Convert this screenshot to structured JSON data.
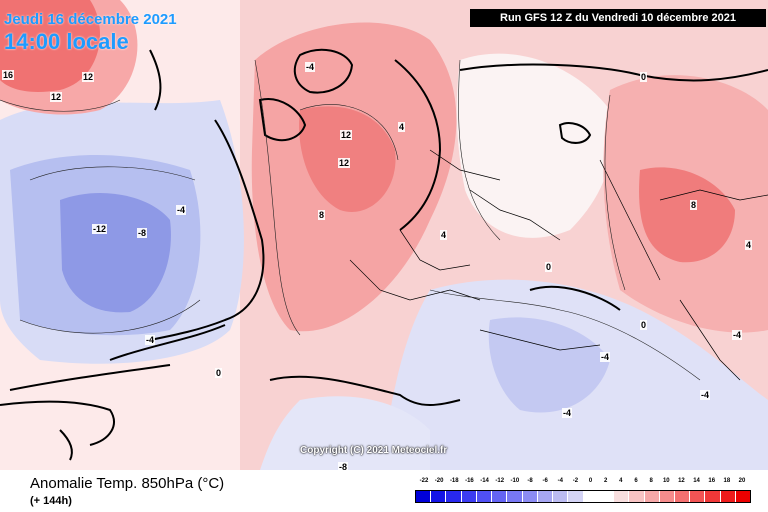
{
  "header": {
    "date": "Jeudi 16 décembre 2021",
    "time": "14:00 locale",
    "run_info": "Run GFS 12 Z du Vendredi 10 décembre 2021"
  },
  "copyright": "Copyright (C) 2021 Meteociel.fr",
  "chart": {
    "title": "Anomalie Temp. 850hPa (°C)",
    "subtitle": "(+ 144h)"
  },
  "legend": {
    "values": [
      "-22",
      "-20",
      "-18",
      "-16",
      "-14",
      "-12",
      "-10",
      "-8",
      "-6",
      "-4",
      "-2",
      "0",
      "2",
      "4",
      "6",
      "8",
      "10",
      "12",
      "14",
      "16",
      "18",
      "20"
    ],
    "colors": [
      "#0000d8",
      "#1414e6",
      "#2828ee",
      "#3c3cf2",
      "#5050f4",
      "#6464f4",
      "#7878f4",
      "#8c8cf4",
      "#a6a6f2",
      "#bcbcf2",
      "#d4d4f6",
      "#ffffff",
      "#ffffff",
      "#f8dede",
      "#f8c4c4",
      "#f6a8a8",
      "#f68c8c",
      "#f47070",
      "#f25454",
      "#f03838",
      "#ee1c1c",
      "#ec0000"
    ]
  },
  "anomaly_labels": [
    {
      "text": "16",
      "name": "label-atlantic-north-16"
    },
    {
      "text": "12",
      "name": "label-atlantic-north-12a"
    },
    {
      "text": "12",
      "name": "label-atlantic-north-12b"
    },
    {
      "text": "-12",
      "name": "label-atlantic-cold-12"
    },
    {
      "text": "-8",
      "name": "label-atlantic-cold-8"
    },
    {
      "text": "-4",
      "name": "label-atlantic-cold-4"
    },
    {
      "text": "-4",
      "name": "label-atlantic-cold-4b"
    },
    {
      "text": "0",
      "name": "label-iberia-0"
    },
    {
      "text": "8",
      "name": "label-france-8"
    },
    {
      "text": "12",
      "name": "label-north-sea-12"
    },
    {
      "text": "12",
      "name": "label-scandinavia-12"
    },
    {
      "text": "-4",
      "name": "label-iceland-4"
    },
    {
      "text": "4",
      "name": "label-scandinavia-4"
    },
    {
      "text": "0",
      "name": "label-russia-0"
    },
    {
      "text": "4",
      "name": "label-russia-east-4"
    },
    {
      "text": "8",
      "name": "label-russia-east-8"
    },
    {
      "text": "-4",
      "name": "label-balkans-4"
    },
    {
      "text": "-4",
      "name": "label-turkey-4"
    },
    {
      "text": "-4",
      "name": "label-greece-4"
    },
    {
      "text": "0",
      "name": "label-italy-0"
    },
    {
      "text": "-8",
      "name": "label-mediterranean-8"
    },
    {
      "text": "4",
      "name": "label-germany-4"
    },
    {
      "text": "0",
      "name": "label-black-sea-0"
    },
    {
      "text": "-4",
      "name": "label-caspian-4"
    }
  ]
}
